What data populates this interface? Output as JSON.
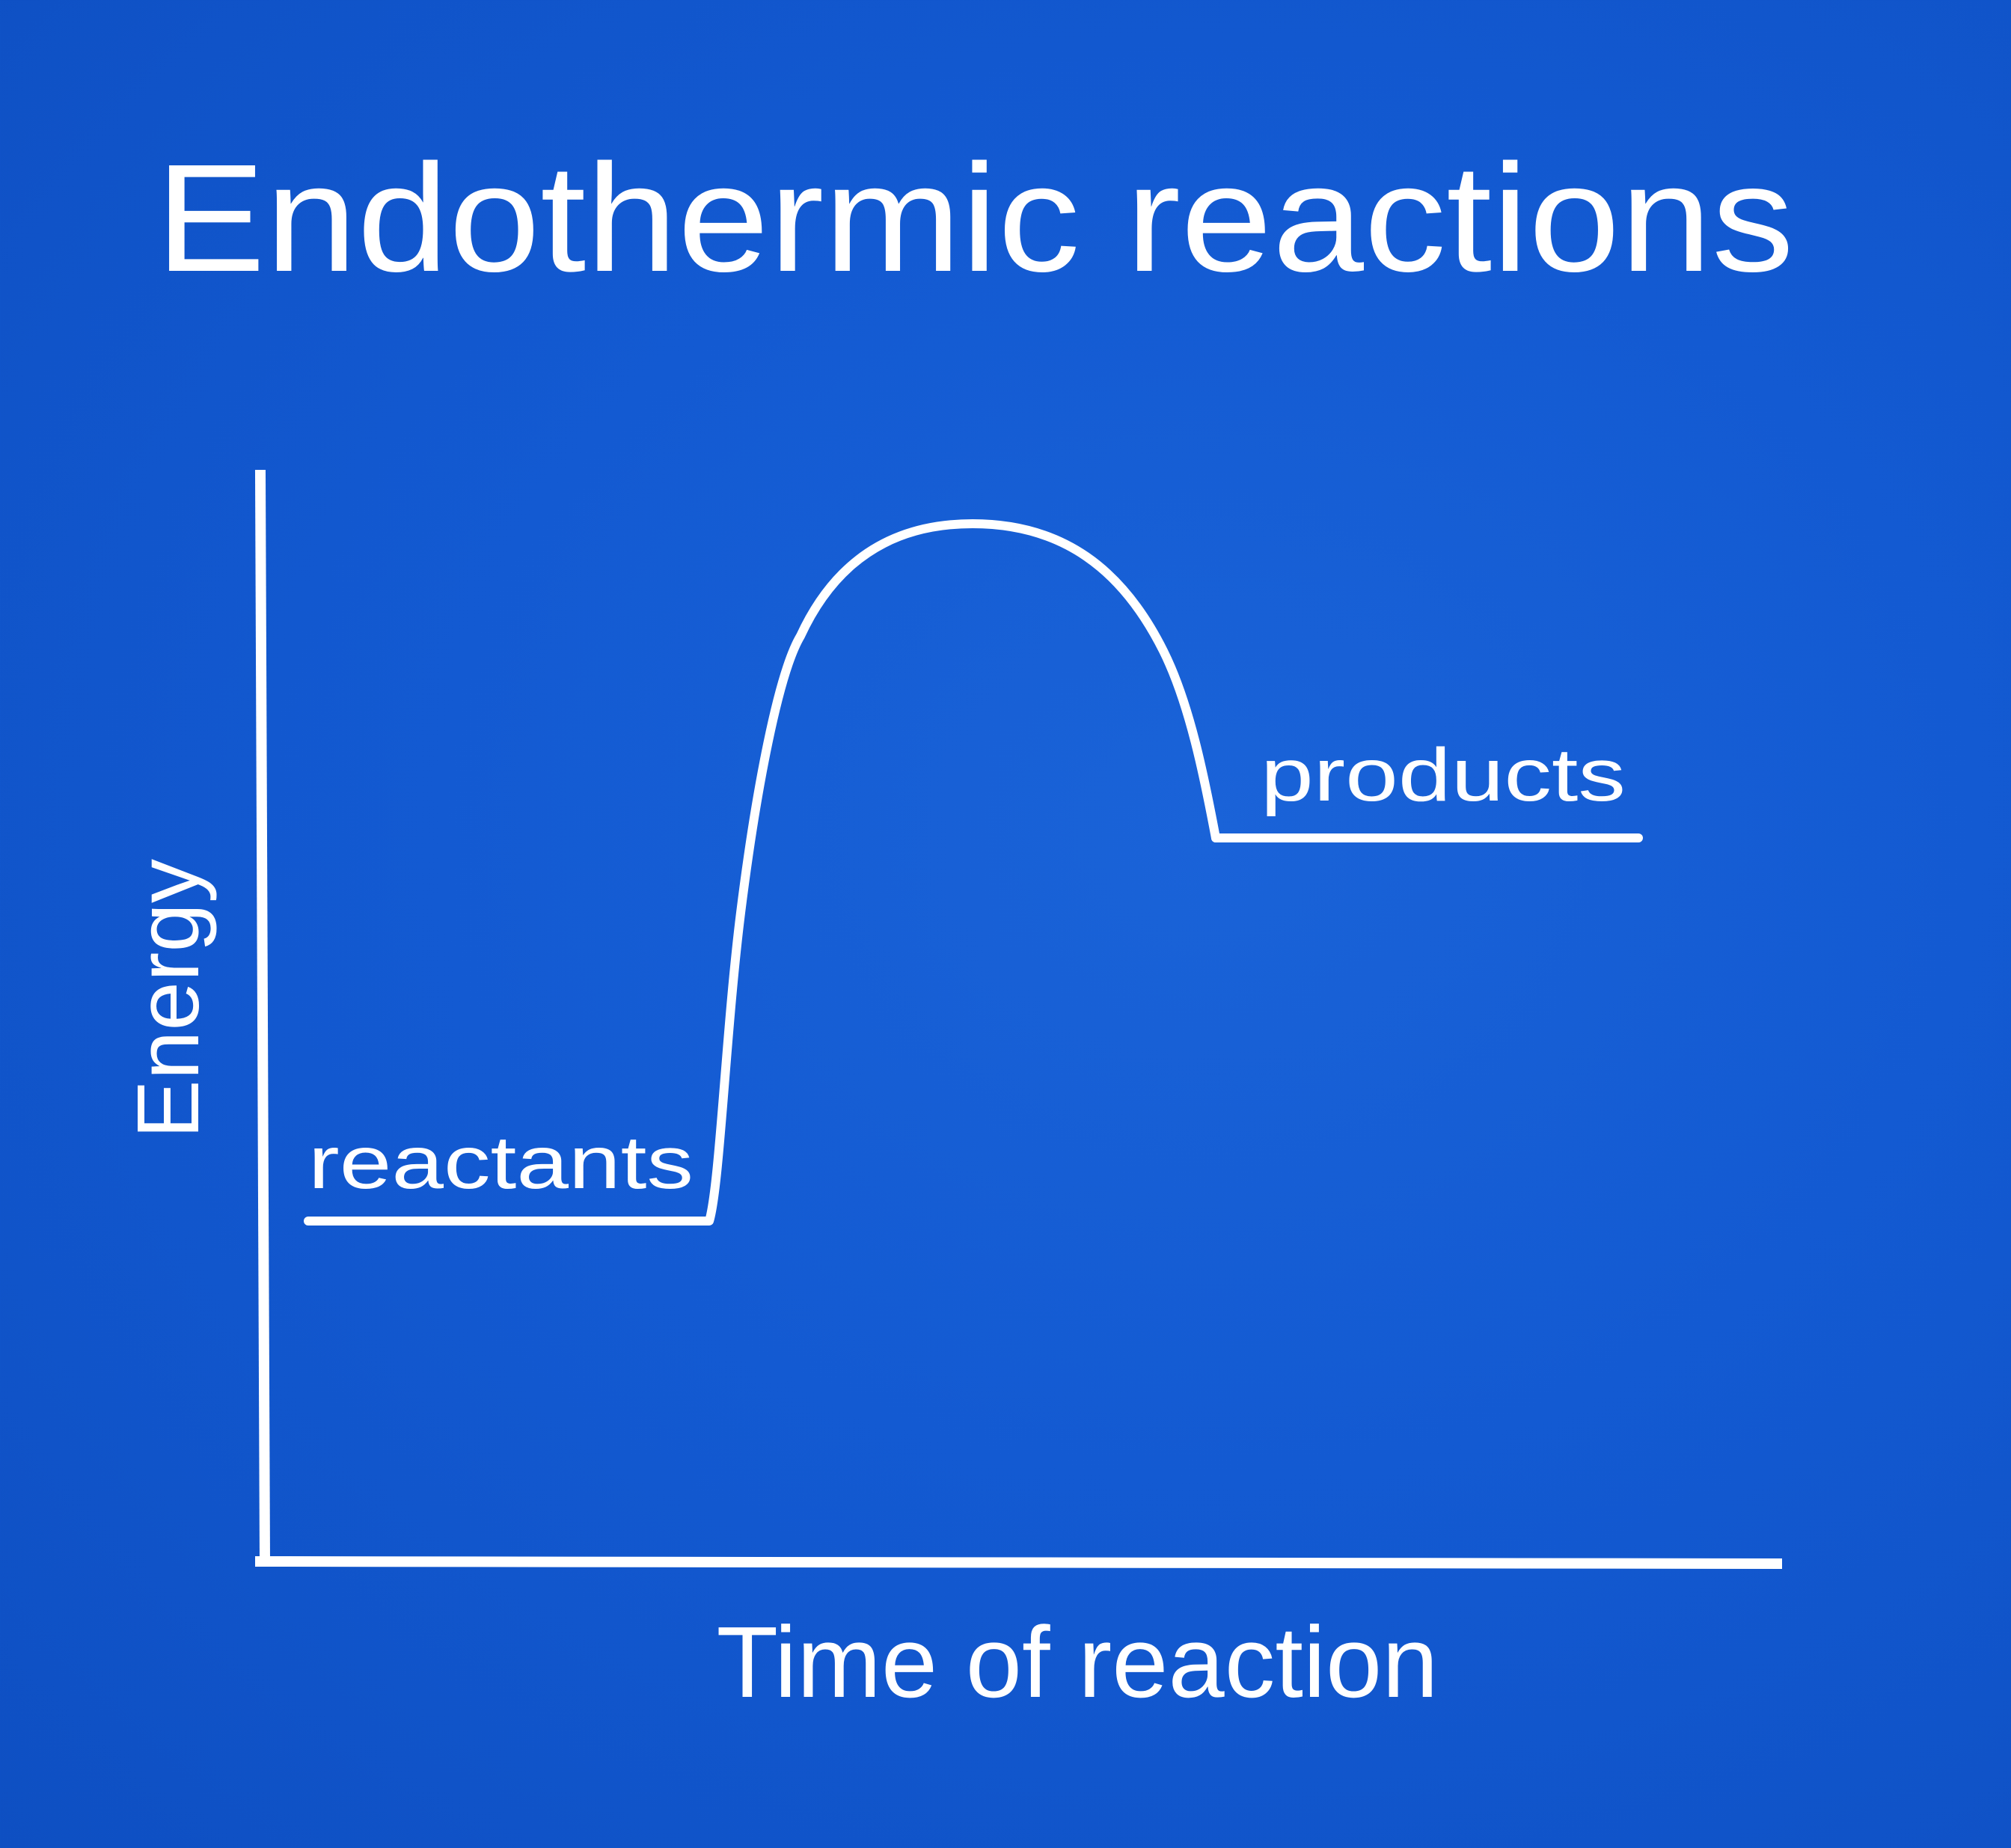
{
  "title": "Endothermic reactions",
  "y_axis_label": "Energy",
  "x_axis_label": "Time of reaction",
  "labels": {
    "reactants": "reactants",
    "products": "products"
  },
  "colors": {
    "background": "#135ad2",
    "foreground": "#ffffff"
  }
}
